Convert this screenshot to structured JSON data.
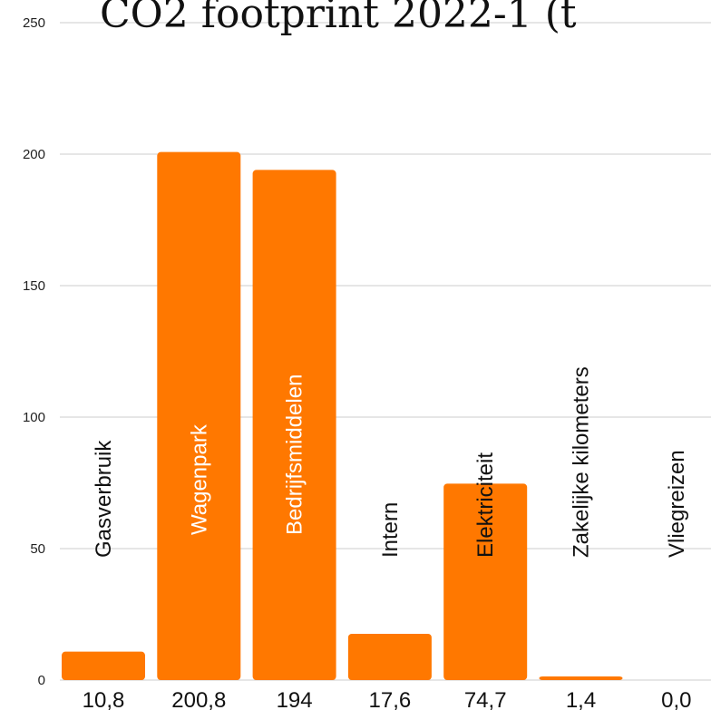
{
  "chart_data": {
    "type": "bar",
    "title": "CO2 footprint 2022-1 (t",
    "categories": [
      "Gasverbruik",
      "Wagenpark",
      "Bedrijfsmiddelen",
      "Intern",
      "Elektriciteit",
      "Zakelijke kilometers",
      "Vliegreizen"
    ],
    "values": [
      10.8,
      200.8,
      194,
      17.6,
      74.7,
      1.4,
      0.0
    ],
    "value_labels": [
      "10,8",
      "200,8",
      "194",
      "17,6",
      "74,7",
      "1,4",
      "0,0"
    ],
    "yticks": [
      0,
      50,
      100,
      150,
      200,
      250
    ],
    "ylim": [
      0,
      250
    ],
    "xlabel": "",
    "ylabel": "",
    "grid": true,
    "legend": "none",
    "colors": {
      "bar": "#FF7800",
      "grid": "#cccccc",
      "label_inside": "#ffffff",
      "label_outside": "#111111"
    }
  }
}
